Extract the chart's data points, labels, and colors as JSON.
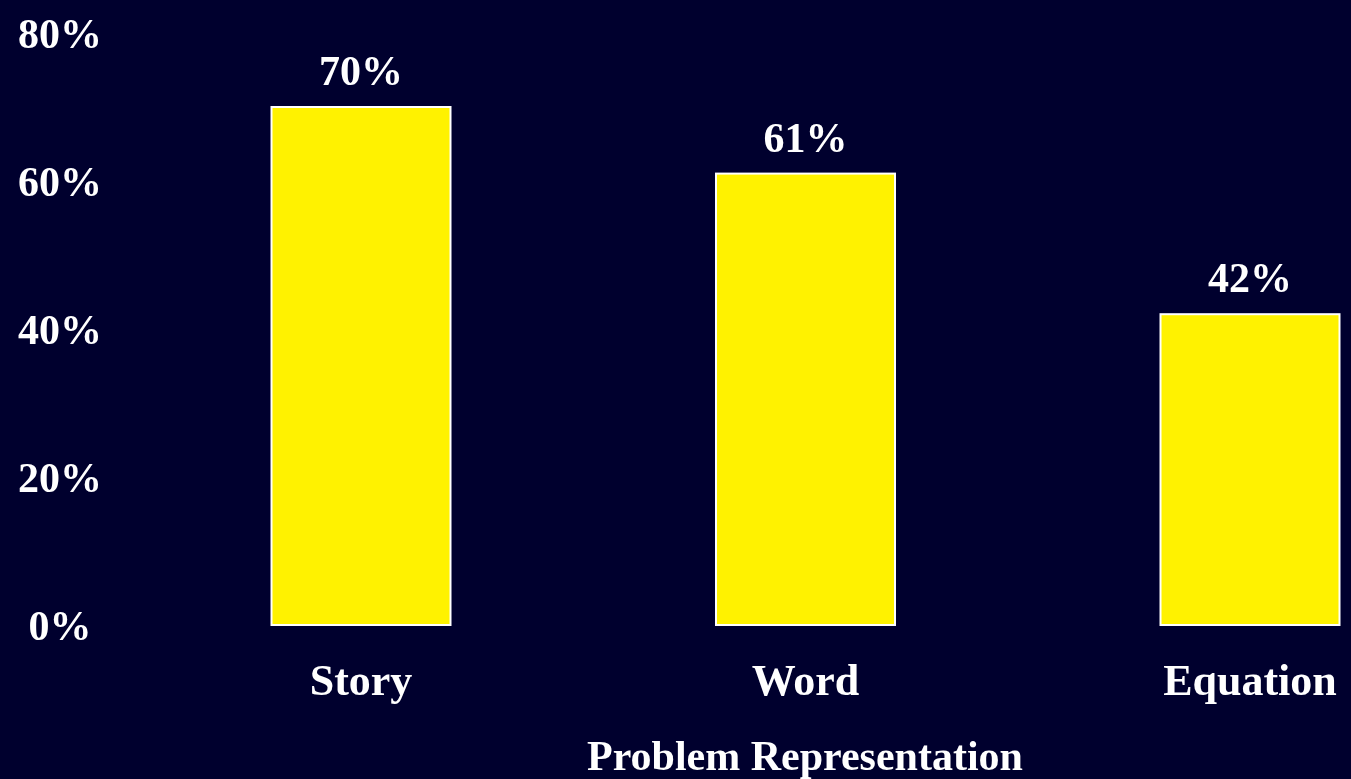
{
  "chart_data": {
    "type": "bar",
    "xlabel": "Problem Representation",
    "categories": [
      "Story",
      "Word",
      "Equation"
    ],
    "values": [
      70,
      61,
      42
    ],
    "value_labels": [
      "70%",
      "61%",
      "42%"
    ],
    "color": "#fff200",
    "ylim": [
      0,
      80
    ],
    "yticks": [
      {
        "value": 0,
        "label": "0%"
      },
      {
        "value": 20,
        "label": "20%"
      },
      {
        "value": 40,
        "label": "40%"
      },
      {
        "value": 60,
        "label": "60%"
      },
      {
        "value": 80,
        "label": "80%"
      }
    ],
    "grid": false
  }
}
